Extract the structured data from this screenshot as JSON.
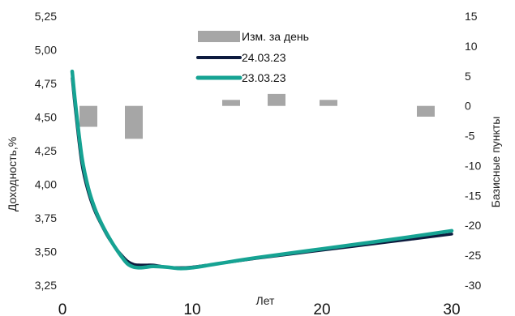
{
  "chart_data": {
    "type": "line",
    "xlabel": "Лет",
    "ylabel": "Доходность,%",
    "y2label": "Базисные пункты",
    "xlim": [
      0,
      30
    ],
    "xticks": [
      "0",
      "10",
      "20",
      "30"
    ],
    "ylim": [
      3.25,
      5.25
    ],
    "yticks": [
      "3,25",
      "3,50",
      "3,75",
      "4,00",
      "4,25",
      "4,50",
      "4,75",
      "5,00",
      "5,25"
    ],
    "y2lim": [
      -30,
      15
    ],
    "y2ticks": [
      "-30",
      "-25",
      "-20",
      "-15",
      "-10",
      "-5",
      "0",
      "5",
      "10",
      "15"
    ],
    "grid": false,
    "legend_position": "top-center",
    "series": [
      {
        "name": "Изм. за день",
        "kind": "bar",
        "color": "#a6a6a6",
        "x": [
          2,
          5.5,
          13,
          16.5,
          20.5,
          28
        ],
        "values": [
          -3.5,
          -5.5,
          1,
          2,
          1,
          -1.8
        ]
      },
      {
        "name": "24.03.23",
        "kind": "line",
        "color": "#0d1b3e",
        "x": [
          0.75,
          1.0,
          1.5,
          2.0,
          2.5,
          3.0,
          3.5,
          4.0,
          4.5,
          5.0,
          5.5,
          6.0,
          6.5,
          7.0,
          8.0,
          9.0,
          10.0,
          12.0,
          15.0,
          20.0,
          25.0,
          30.0
        ],
        "values": [
          4.79,
          4.55,
          4.15,
          3.94,
          3.8,
          3.7,
          3.61,
          3.54,
          3.48,
          3.43,
          3.405,
          3.4,
          3.4,
          3.4,
          3.385,
          3.38,
          3.385,
          3.41,
          3.45,
          3.51,
          3.57,
          3.63
        ]
      },
      {
        "name": "23.03.23",
        "kind": "line",
        "color": "#16a393",
        "x": [
          0.75,
          1.0,
          1.5,
          2.0,
          2.5,
          3.0,
          3.5,
          4.0,
          4.5,
          5.0,
          5.5,
          6.0,
          6.5,
          7.0,
          8.0,
          9.0,
          10.0,
          12.0,
          15.0,
          20.0,
          25.0,
          30.0
        ],
        "values": [
          4.84,
          4.6,
          4.2,
          3.97,
          3.82,
          3.71,
          3.62,
          3.54,
          3.47,
          3.41,
          3.385,
          3.38,
          3.385,
          3.39,
          3.385,
          3.375,
          3.38,
          3.41,
          3.455,
          3.52,
          3.585,
          3.655
        ]
      }
    ]
  }
}
